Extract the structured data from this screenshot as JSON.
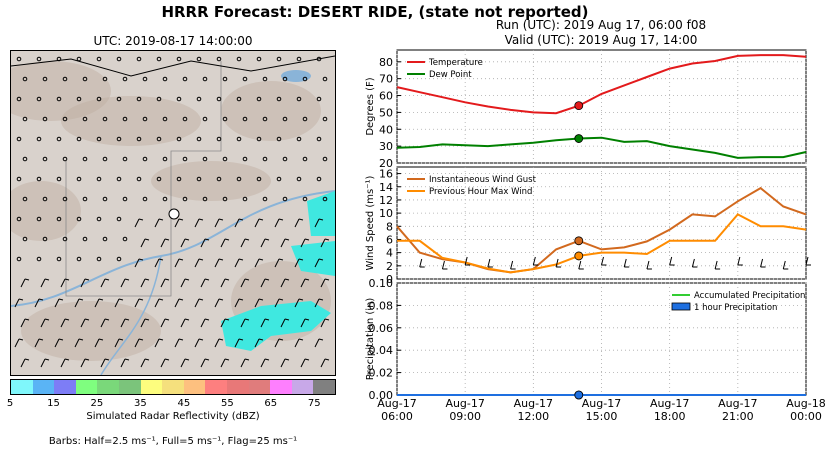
{
  "header": {
    "title": "HRRR Forecast: DESERT RIDE, (state not reported)",
    "run": "Run (UTC): 2019 Aug 17, 06:00 f08",
    "valid": "Valid (UTC): 2019 Aug 17, 14:00"
  },
  "map": {
    "title": "UTC: 2019-08-17 14:00:00",
    "colorbar_label": "Simulated Radar Reflectivity (dBZ)",
    "colorbar_ticks": [
      "5",
      "15",
      "25",
      "35",
      "45",
      "55",
      "65",
      "75"
    ],
    "colorbar_colors": [
      "#7ff7fb",
      "#5ab4f5",
      "#7d7df6",
      "#7ffe7f",
      "#7ad87a",
      "#7bc47b",
      "#fdfd7e",
      "#f5e07d",
      "#fdc07f",
      "#fd7f7f",
      "#e87878",
      "#e07c7c",
      "#fe7ffe",
      "#c8a8e8",
      "#808080"
    ],
    "barbs_note": "Barbs: Half=2.5 ms⁻¹, Full=5 ms⁻¹, Flag=25 ms⁻¹",
    "colors": {
      "terrain": "#d9d2cc",
      "radar": "#3fe8e0",
      "water": "#8ab4d8"
    }
  },
  "chart_data": [
    {
      "type": "line",
      "ylabel": "Degrees (F)",
      "ylim": [
        20,
        87
      ],
      "yticks": [
        20,
        30,
        40,
        50,
        60,
        70,
        80
      ],
      "grid": true,
      "legend": "top-left",
      "x": [
        "06:00",
        "07:00",
        "08:00",
        "09:00",
        "10:00",
        "11:00",
        "12:00",
        "13:00",
        "14:00",
        "15:00",
        "16:00",
        "17:00",
        "18:00",
        "19:00",
        "20:00",
        "21:00",
        "22:00",
        "23:00",
        "00:00"
      ],
      "series": [
        {
          "name": "Temperature",
          "color": "#e31a1c",
          "values": [
            65,
            62,
            59,
            56,
            53.5,
            51.5,
            50,
            49.5,
            54,
            61,
            66,
            71,
            76,
            79,
            80.5,
            83.5,
            84,
            84,
            83
          ]
        },
        {
          "name": "Dew Point",
          "color": "#008000",
          "values": [
            29,
            29.5,
            31,
            30.5,
            30,
            31,
            32,
            33.5,
            34.5,
            35,
            32.5,
            33,
            30,
            28,
            26,
            23,
            23.5,
            23.5,
            26.5
          ]
        }
      ],
      "marker_index": 8
    },
    {
      "type": "line",
      "ylabel": "Wind Speed (ms⁻¹)",
      "ylim": [
        0,
        17
      ],
      "yticks": [
        0,
        2,
        4,
        6,
        8,
        10,
        12,
        14,
        16
      ],
      "grid": true,
      "legend": "top-left",
      "x": [
        "06:00",
        "07:00",
        "08:00",
        "09:00",
        "10:00",
        "11:00",
        "12:00",
        "13:00",
        "14:00",
        "15:00",
        "16:00",
        "17:00",
        "18:00",
        "19:00",
        "20:00",
        "21:00",
        "22:00",
        "23:00",
        "00:00"
      ],
      "series": [
        {
          "name": "Instantaneous Wind Gust",
          "color": "#d2691e",
          "values": [
            8,
            4,
            3,
            2.5,
            1.5,
            1,
            1.5,
            4.5,
            5.8,
            4.5,
            4.8,
            5.7,
            7.5,
            9.8,
            9.5,
            11.8,
            13.8,
            11,
            9.8
          ]
        },
        {
          "name": "Previous Hour Max Wind",
          "color": "#ff8c00",
          "values": [
            5.8,
            5.8,
            3.2,
            2.5,
            1.6,
            1,
            1.5,
            2.2,
            3.5,
            4,
            4,
            3.8,
            5.8,
            5.8,
            5.8,
            9.8,
            8,
            8,
            7.5
          ]
        }
      ],
      "marker_index": 8
    },
    {
      "type": "line",
      "ylabel": "Precipitation (in)",
      "xlabel": "",
      "ylim": [
        0,
        0.1
      ],
      "yticks": [
        "0.00",
        "0.02",
        "0.04",
        "0.06",
        "0.08",
        "0.10"
      ],
      "grid": true,
      "legend": "top-right",
      "x": [
        "06:00",
        "07:00",
        "08:00",
        "09:00",
        "10:00",
        "11:00",
        "12:00",
        "13:00",
        "14:00",
        "15:00",
        "16:00",
        "17:00",
        "18:00",
        "19:00",
        "20:00",
        "21:00",
        "22:00",
        "23:00",
        "00:00"
      ],
      "series": [
        {
          "name": "Accumulated Precipitation",
          "color": "#32cd32",
          "values": [
            0,
            0,
            0,
            0,
            0,
            0,
            0,
            0,
            0,
            0,
            0,
            0,
            0,
            0,
            0,
            0,
            0,
            0,
            0
          ]
        },
        {
          "name": "1 hour Precipitation",
          "color": "#1e6fe0",
          "values": [
            0,
            0,
            0,
            0,
            0,
            0,
            0,
            0,
            0,
            0,
            0,
            0,
            0,
            0,
            0,
            0,
            0,
            0,
            0
          ]
        }
      ],
      "marker_index": 8,
      "xticks": [
        {
          "line1": "Aug-17",
          "line2": "06:00"
        },
        {
          "line1": "Aug-17",
          "line2": "09:00"
        },
        {
          "line1": "Aug-17",
          "line2": "12:00"
        },
        {
          "line1": "Aug-17",
          "line2": "15:00"
        },
        {
          "line1": "Aug-17",
          "line2": "18:00"
        },
        {
          "line1": "Aug-17",
          "line2": "21:00"
        },
        {
          "line1": "Aug-18",
          "line2": "00:00"
        }
      ]
    }
  ]
}
